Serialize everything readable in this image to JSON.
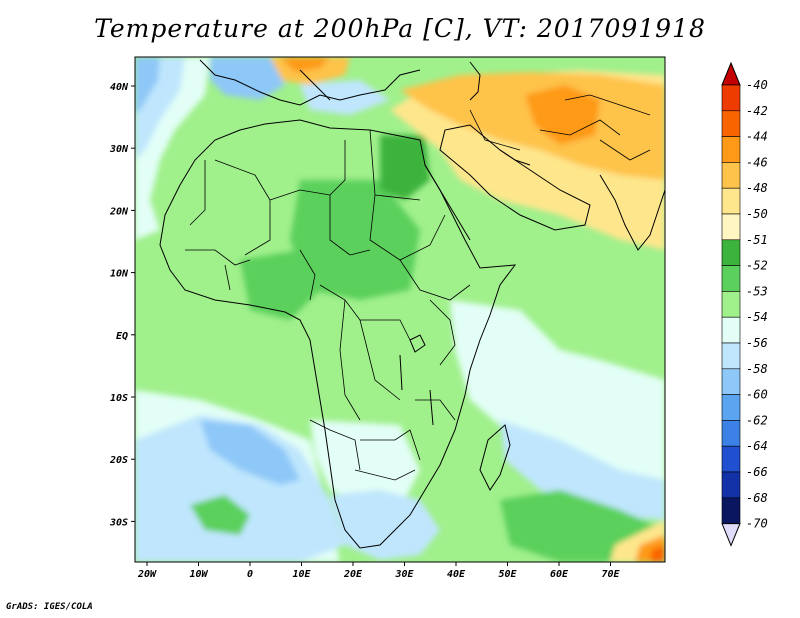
{
  "title": "Temperature at 200hPa [C], VT: 2017091918",
  "credit": "GrADS: IGES/COLA",
  "map": {
    "lon_labels": [
      "20W",
      "10W",
      "0",
      "10E",
      "20E",
      "30E",
      "40E",
      "50E",
      "60E",
      "70E"
    ],
    "lat_labels": [
      "40N",
      "30N",
      "20N",
      "10N",
      "EQ",
      "10S",
      "20S",
      "30S"
    ]
  },
  "colorbar": {
    "labels": [
      "-40",
      "-42",
      "-44",
      "-46",
      "-48",
      "-50",
      "-51",
      "-52",
      "-53",
      "-54",
      "-56",
      "-58",
      "-60",
      "-62",
      "-64",
      "-66",
      "-68",
      "-70"
    ],
    "colors": [
      "#c40000",
      "#ee3c00",
      "#fa6400",
      "#fe9a18",
      "#fec34a",
      "#fee68c",
      "#fff6c2",
      "#3cb33c",
      "#5cd05c",
      "#a0f08c",
      "#e2fef6",
      "#bfe6fd",
      "#8ec8f8",
      "#5aa4f0",
      "#3c82e6",
      "#2050d0",
      "#1432a8",
      "#0a1660"
    ],
    "top_arrow_color": "#c40000",
    "bottom_arrow_color": "#e0dcfc"
  },
  "colors": {
    "land_green": "#a0f08c",
    "mid_green": "#5cd05c",
    "deep_green": "#3cb33c",
    "pale_cyan": "#e2fef6",
    "light_blue": "#bfe6fd",
    "medium_blue": "#8ec8f8",
    "yellow": "#fee68c",
    "orange": "#fec34a",
    "dark_orange": "#fe9a18",
    "red_orange": "#fa6400"
  }
}
